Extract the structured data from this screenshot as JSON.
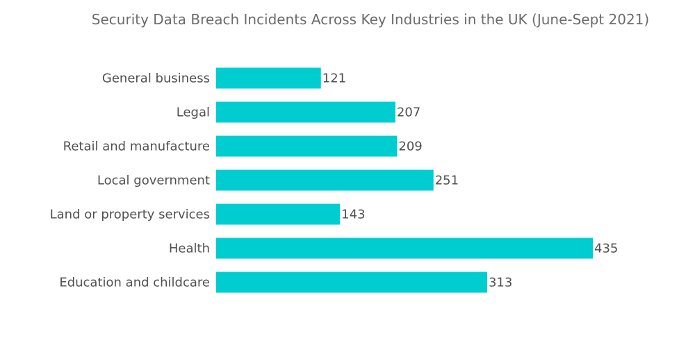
{
  "chart_data": {
    "type": "bar",
    "orientation": "horizontal",
    "title": "Security Data Breach Incidents Across Key Industries in the UK (June-Sept 2021)",
    "categories": [
      "General business",
      "Legal",
      "Retail and manufacture",
      "Local government",
      "Land or property services",
      "Health",
      "Education and childcare"
    ],
    "values": [
      121,
      207,
      209,
      251,
      143,
      435,
      313
    ],
    "xlabel": "",
    "ylabel": "",
    "xlim": [
      0,
      435
    ],
    "grid": false,
    "legend": "none",
    "bar_color": "#00cdd0",
    "data_labels": true
  }
}
